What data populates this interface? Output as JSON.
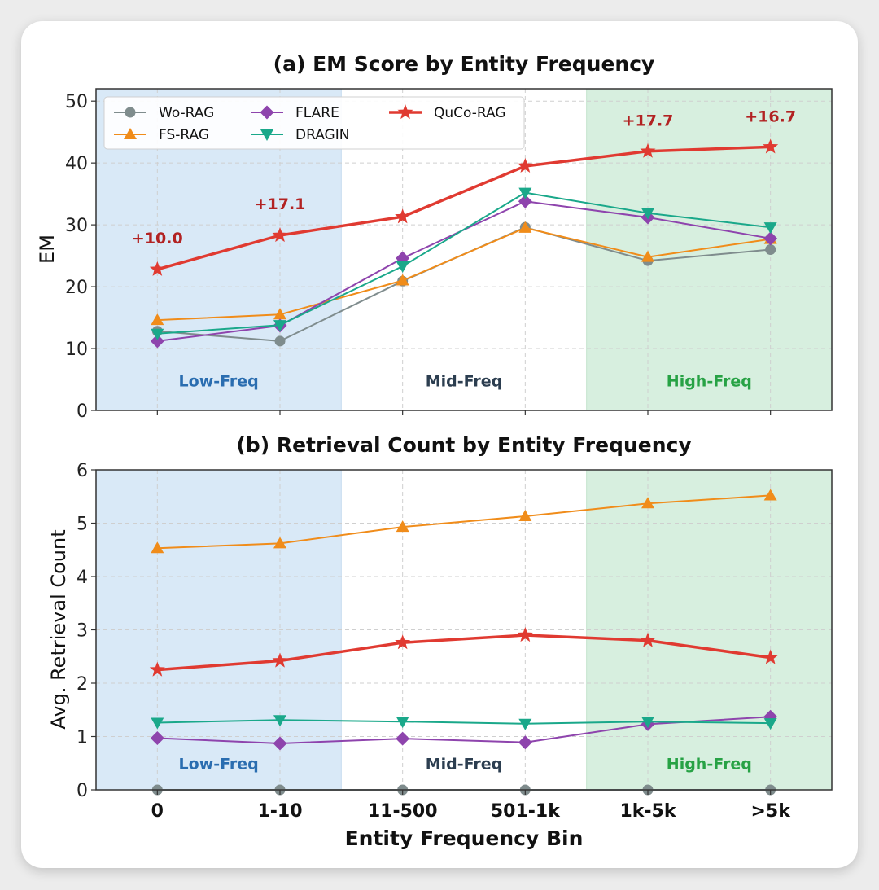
{
  "chart_data": [
    {
      "type": "line",
      "title": "(a) EM Score by Entity Frequency",
      "xlabel": "",
      "ylabel": "EM",
      "categories": [
        "0",
        "1-10",
        "11-500",
        "501-1k",
        "1k-5k",
        ">5k"
      ],
      "show_xtick_labels": false,
      "ylim": [
        0,
        52
      ],
      "yticks": [
        0,
        10,
        20,
        30,
        40,
        50
      ],
      "grid": true,
      "legend": "top-left",
      "series": [
        {
          "name": "Wo-RAG",
          "color": "#7f8c8d",
          "marker": "circle",
          "values": [
            12.8,
            11.2,
            20.9,
            29.6,
            24.2,
            26.0
          ]
        },
        {
          "name": "FS-RAG",
          "color": "#f08c1a",
          "marker": "triangle-up",
          "values": [
            14.6,
            15.5,
            21.0,
            29.5,
            24.8,
            27.7
          ]
        },
        {
          "name": "FLARE",
          "color": "#8e44ad",
          "marker": "diamond",
          "values": [
            11.2,
            13.7,
            24.6,
            33.8,
            31.2,
            27.8
          ]
        },
        {
          "name": "DRAGIN",
          "color": "#1aa88a",
          "marker": "triangle-down",
          "values": [
            12.4,
            13.8,
            23.3,
            35.2,
            31.9,
            29.6
          ]
        },
        {
          "name": "QuCo-RAG",
          "color": "#e03a31",
          "marker": "star",
          "values": [
            22.8,
            28.3,
            31.3,
            39.5,
            41.9,
            42.6
          ]
        }
      ],
      "annotations": [
        {
          "category": "0",
          "text": "+10.0",
          "y": 27.0
        },
        {
          "category": "1-10",
          "text": "+17.1",
          "y": 32.5
        },
        {
          "category": "1k-5k",
          "text": "+17.7",
          "y": 46.0
        },
        {
          "category": ">5k",
          "text": "+16.7",
          "y": 46.7
        }
      ],
      "regions": [
        {
          "label": "Low-Freq",
          "from": -0.5,
          "to": 1.5,
          "fill": "#d9e9f7",
          "text_color": "#2a6db0",
          "label_x": 0.5
        },
        {
          "label": "Mid-Freq",
          "from": 1.5,
          "to": 3.5,
          "fill": "#ffffff",
          "text_color": "#2c3e50",
          "label_x": 2.5
        },
        {
          "label": "High-Freq",
          "from": 3.5,
          "to": 5.5,
          "fill": "#d7efdf",
          "text_color": "#27a245",
          "label_x": 4.5
        }
      ],
      "region_label_y": 4.8
    },
    {
      "type": "line",
      "title": "(b) Retrieval Count by Entity Frequency",
      "xlabel": "Entity Frequency Bin",
      "ylabel": "Avg. Retrieval Count",
      "categories": [
        "0",
        "1-10",
        "11-500",
        "501-1k",
        "1k-5k",
        ">5k"
      ],
      "show_xtick_labels": true,
      "ylim": [
        0,
        6
      ],
      "yticks": [
        0,
        1,
        2,
        3,
        4,
        5,
        6
      ],
      "grid": true,
      "legend": "none",
      "series": [
        {
          "name": "Wo-RAG",
          "color": "#7f8c8d",
          "marker": "circle",
          "values": [
            0,
            0,
            0,
            0,
            0,
            0
          ]
        },
        {
          "name": "FS-RAG",
          "color": "#f08c1a",
          "marker": "triangle-up",
          "values": [
            4.53,
            4.62,
            4.93,
            5.13,
            5.37,
            5.52
          ]
        },
        {
          "name": "FLARE",
          "color": "#8e44ad",
          "marker": "diamond",
          "values": [
            0.97,
            0.87,
            0.96,
            0.89,
            1.23,
            1.37
          ]
        },
        {
          "name": "DRAGIN",
          "color": "#1aa88a",
          "marker": "triangle-down",
          "values": [
            1.26,
            1.31,
            1.28,
            1.24,
            1.28,
            1.25
          ]
        },
        {
          "name": "QuCo-RAG",
          "color": "#e03a31",
          "marker": "star",
          "values": [
            2.25,
            2.42,
            2.76,
            2.9,
            2.8,
            2.48
          ]
        }
      ],
      "annotations": [],
      "regions": [
        {
          "label": "Low-Freq",
          "from": -0.5,
          "to": 1.5,
          "fill": "#d9e9f7",
          "text_color": "#2a6db0",
          "label_x": 0.5
        },
        {
          "label": "Mid-Freq",
          "from": 1.5,
          "to": 3.5,
          "fill": "#ffffff",
          "text_color": "#2c3e50",
          "label_x": 2.5
        },
        {
          "label": "High-Freq",
          "from": 3.5,
          "to": 5.5,
          "fill": "#d7efdf",
          "text_color": "#27a245",
          "label_x": 4.5
        }
      ],
      "region_label_y": 0.5
    }
  ]
}
